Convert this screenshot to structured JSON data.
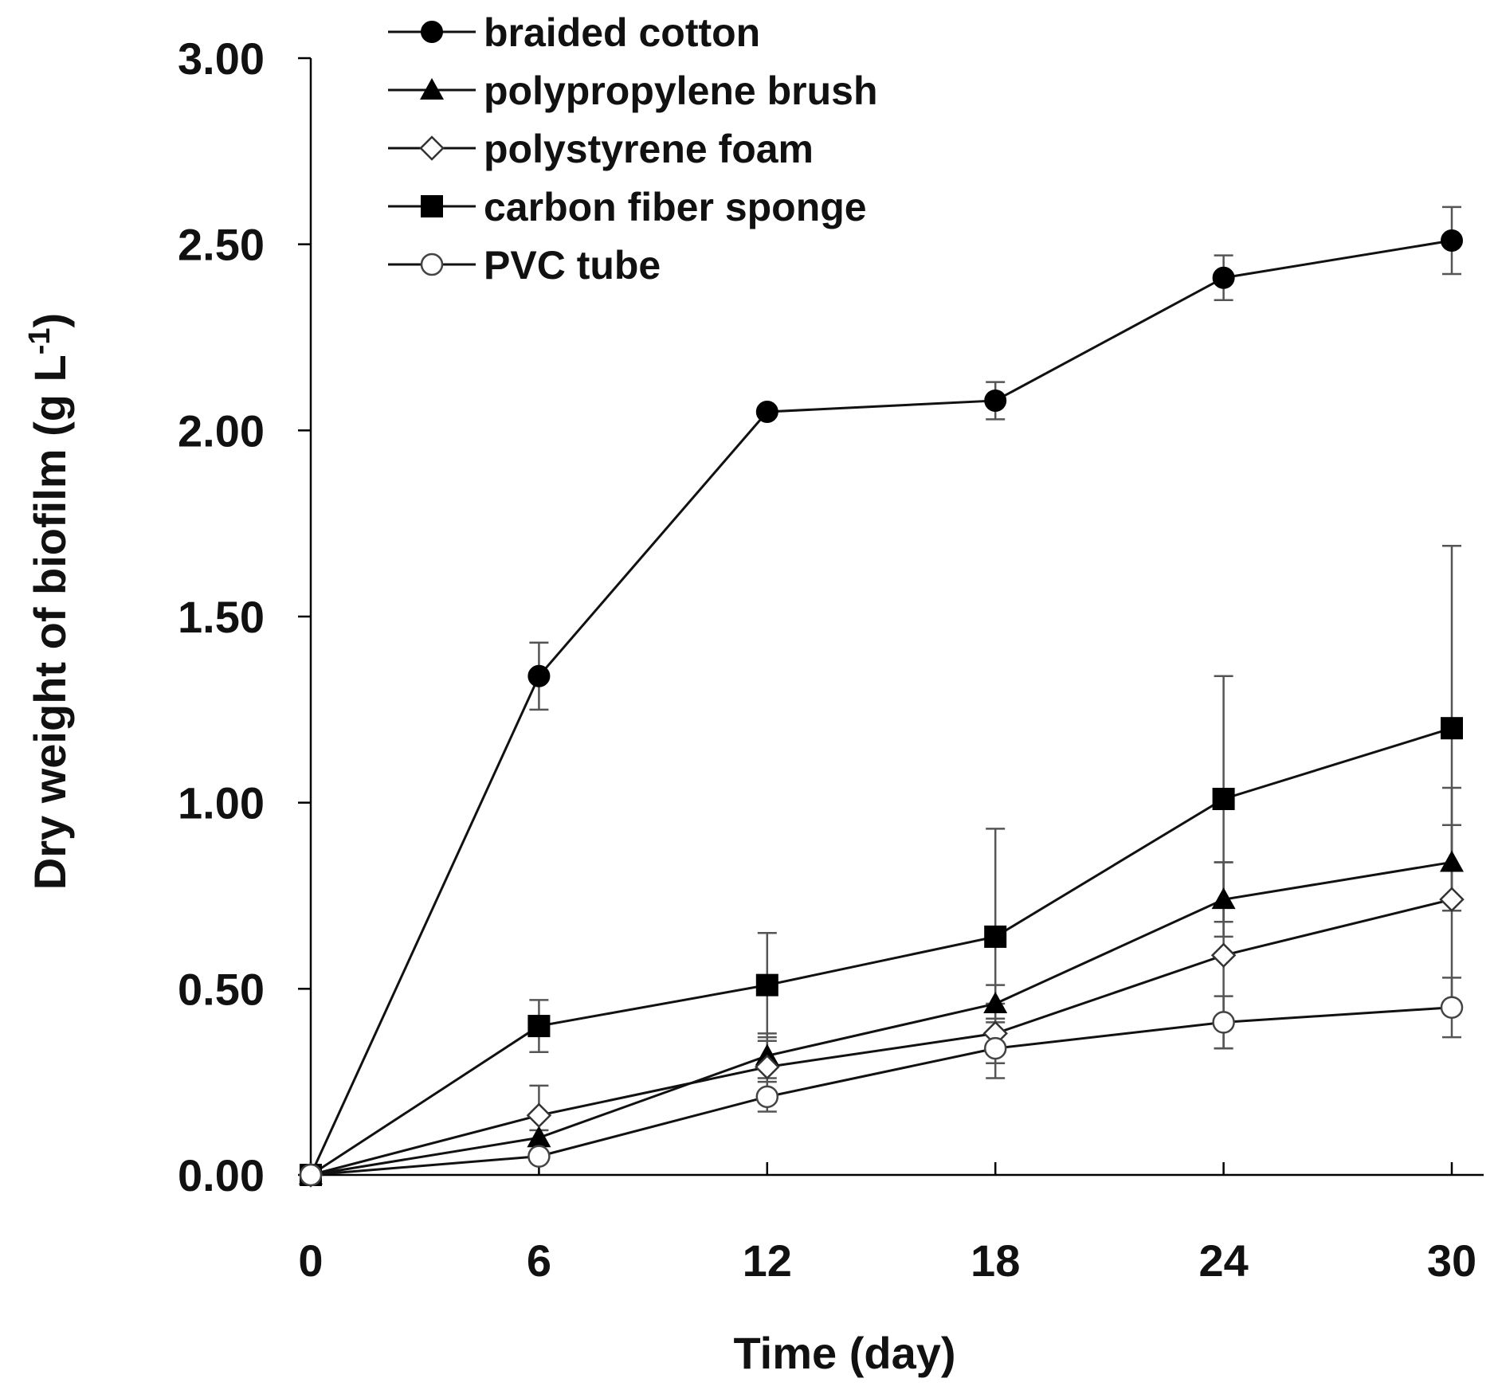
{
  "chart_data": {
    "type": "line",
    "title": "",
    "xlabel": "Time (day)",
    "ylabel": "Dry weight of biofilm (g L",
    "ylabel_superscript": "-1",
    "ylabel_close": ")",
    "xlim": [
      0,
      30
    ],
    "ylim": [
      0,
      3
    ],
    "x": [
      0,
      6,
      12,
      18,
      24,
      30
    ],
    "x_tick_labels": [
      "0",
      "6",
      "12",
      "18",
      "24",
      "30"
    ],
    "y_ticks": [
      0,
      0.5,
      1,
      1.5,
      2,
      2.5,
      3
    ],
    "y_tick_labels": [
      "0.00",
      "0.50",
      "1.00",
      "1.50",
      "2.00",
      "2.50",
      "3.00"
    ],
    "grid": false,
    "legend_position": "top-left",
    "series": [
      {
        "name": "braided cotton",
        "marker": "filled-circle",
        "values": [
          0,
          1.34,
          2.05,
          2.08,
          2.41,
          2.51
        ],
        "errors": [
          0,
          0.09,
          0,
          0.05,
          0.06,
          0.09
        ]
      },
      {
        "name": "polypropylene brush",
        "marker": "filled-triangle",
        "values": [
          0,
          0.1,
          0.32,
          0.46,
          0.74,
          0.84
        ],
        "errors": [
          0,
          0.02,
          0.06,
          0.05,
          0.1,
          0.1
        ]
      },
      {
        "name": "polystyrene foam",
        "marker": "open-diamond",
        "values": [
          0,
          0.16,
          0.29,
          0.38,
          0.59,
          0.74
        ],
        "errors": [
          0,
          0.08,
          0.07,
          0.08,
          0.25,
          0.3
        ]
      },
      {
        "name": "carbon fiber sponge",
        "marker": "filled-square",
        "values": [
          0,
          0.4,
          0.51,
          0.64,
          1.01,
          1.2
        ],
        "errors": [
          0,
          0.07,
          0.14,
          0.29,
          0.33,
          0.49
        ]
      },
      {
        "name": "PVC tube",
        "marker": "open-circle",
        "values": [
          0,
          0.05,
          0.21,
          0.34,
          0.41,
          0.45
        ],
        "errors": [
          0,
          0,
          0.04,
          0.08,
          0.07,
          0.08
        ]
      }
    ]
  }
}
